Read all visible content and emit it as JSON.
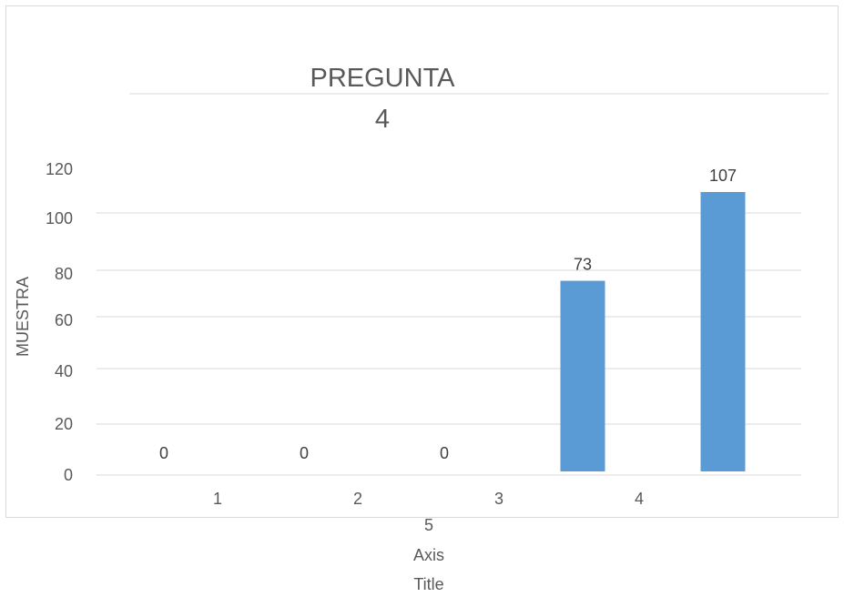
{
  "chart_data": {
    "type": "bar",
    "title_lines": [
      "PREGUNTA",
      "4"
    ],
    "ylabel": "MUESTRA",
    "xlabel_lines": [
      "Axis",
      "Title"
    ],
    "categories": [
      "1",
      "2",
      "3",
      "4",
      "5"
    ],
    "values": [
      0,
      0,
      0,
      73,
      107
    ],
    "data_labels": [
      "0",
      "0",
      "0",
      "73",
      "107"
    ],
    "y_ticks": [
      "0",
      "20",
      "40",
      "60",
      "80",
      "100",
      "120"
    ],
    "ylim": [
      0,
      120
    ],
    "grid": true,
    "bar_color": "#5b9bd5",
    "gridline_color": "#d9d9d9"
  }
}
